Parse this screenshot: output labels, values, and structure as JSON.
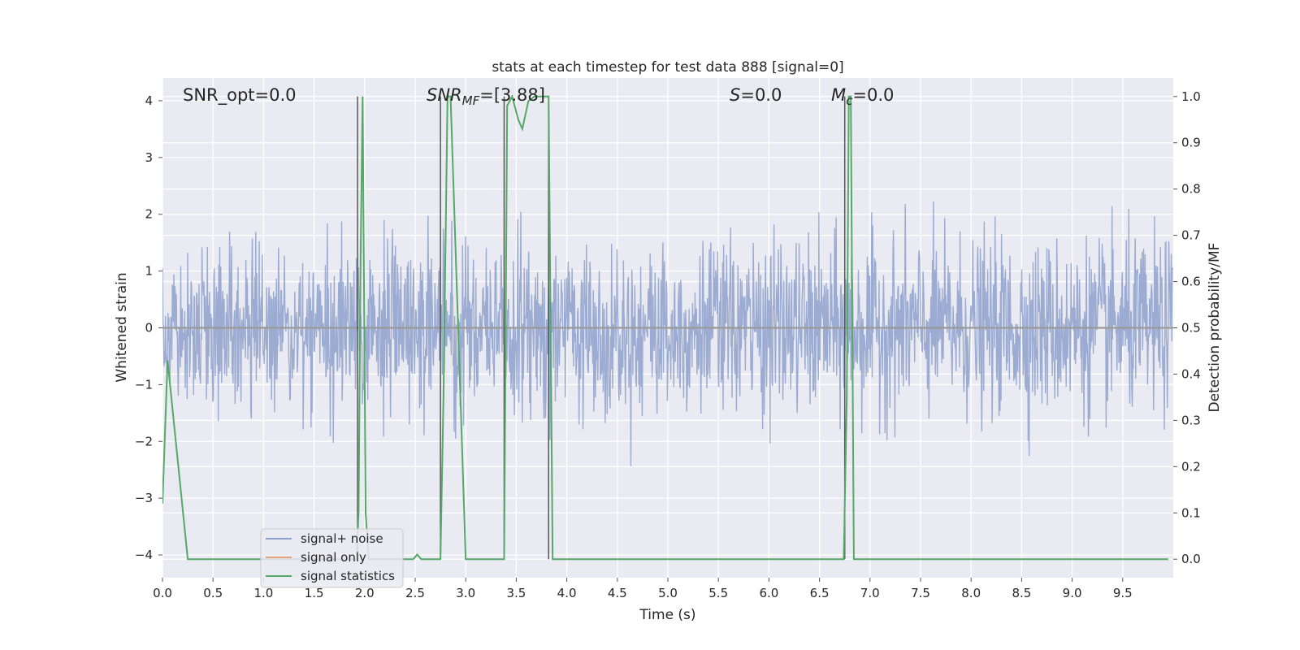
{
  "chart_data": {
    "type": "line",
    "title": "stats at each timestep for test data 888 [signal=0]",
    "xlabel": "Time (s)",
    "ylabel": "Whitened strain",
    "ylabel_right": "Detection probability/MF",
    "xlim": [
      0,
      10
    ],
    "ylim": [
      -4.4,
      4.4
    ],
    "ylim_right": [
      -0.04,
      1.04
    ],
    "xticks": [
      0.0,
      0.5,
      1.0,
      1.5,
      2.0,
      2.5,
      3.0,
      3.5,
      4.0,
      4.5,
      5.0,
      5.5,
      6.0,
      6.5,
      7.0,
      7.5,
      8.0,
      8.5,
      9.0,
      9.5
    ],
    "xtick_labels": [
      "0.0",
      "0.5",
      "1.0",
      "1.5",
      "2.0",
      "2.5",
      "3.0",
      "3.5",
      "4.0",
      "4.5",
      "5.0",
      "5.5",
      "6.0",
      "6.5",
      "7.0",
      "7.5",
      "8.0",
      "8.5",
      "9.0",
      "9.5"
    ],
    "yticks": [
      -4,
      -3,
      -2,
      -1,
      0,
      1,
      2,
      3,
      4
    ],
    "ytick_labels": [
      "−4",
      "−3",
      "−2",
      "−1",
      "0",
      "1",
      "2",
      "3",
      "4"
    ],
    "yticks_right": [
      0.0,
      0.1,
      0.2,
      0.3,
      0.4,
      0.5,
      0.6,
      0.7,
      0.8,
      0.9,
      1.0
    ],
    "ytick_right_labels": [
      "0.0",
      "0.1",
      "0.2",
      "0.3",
      "0.4",
      "0.5",
      "0.6",
      "0.7",
      "0.8",
      "0.9",
      "1.0"
    ],
    "grid": true,
    "legend_position": "lower-left",
    "annotations": {
      "snr_opt": "SNR_opt=0.0",
      "snr_mf_sym": "SNR",
      "snr_mf_sub": "MF",
      "snr_mf_val": "=[3.88]",
      "s_sym": "S",
      "s_val": "=0.0",
      "mc_sym": "M",
      "mc_sub": "c",
      "mc_val": "=0.0"
    },
    "series": [
      {
        "name": "signal+ noise",
        "color": "#8da0cb",
        "axis": "left",
        "noise_std": 0.75,
        "duration": 10,
        "samples": 2048
      },
      {
        "name": "signal only",
        "color": "#e7a27c",
        "axis": "left",
        "values_constant": 0.0
      },
      {
        "name": "signal statistics",
        "color": "#55a868",
        "axis": "right",
        "x": [
          0.0,
          0.05,
          0.25,
          0.28,
          1.92,
          1.94,
          1.96,
          1.98,
          2.01,
          2.04,
          2.48,
          2.52,
          2.56,
          2.72,
          2.75,
          2.78,
          2.82,
          2.85,
          2.88,
          3.0,
          3.38,
          3.41,
          3.46,
          3.52,
          3.56,
          3.62,
          3.68,
          3.78,
          3.82,
          3.86,
          3.92,
          4.0,
          6.74,
          6.77,
          6.79,
          6.81,
          6.84,
          6.9,
          9.95
        ],
        "values": [
          0.12,
          0.43,
          0.0,
          0.0,
          0.0,
          0.1,
          0.65,
          1.0,
          0.1,
          0.0,
          0.0,
          0.01,
          0.0,
          0.0,
          0.0,
          0.35,
          1.0,
          1.0,
          0.8,
          0.0,
          0.0,
          0.98,
          1.0,
          0.95,
          0.93,
          0.99,
          1.0,
          1.0,
          1.0,
          0.0,
          0.0,
          0.0,
          0.0,
          0.35,
          1.0,
          1.0,
          0.0,
          0.0,
          0.0
        ]
      }
    ],
    "vertical_markers": [
      1.93,
      2.75,
      3.38,
      3.82,
      6.75
    ]
  }
}
